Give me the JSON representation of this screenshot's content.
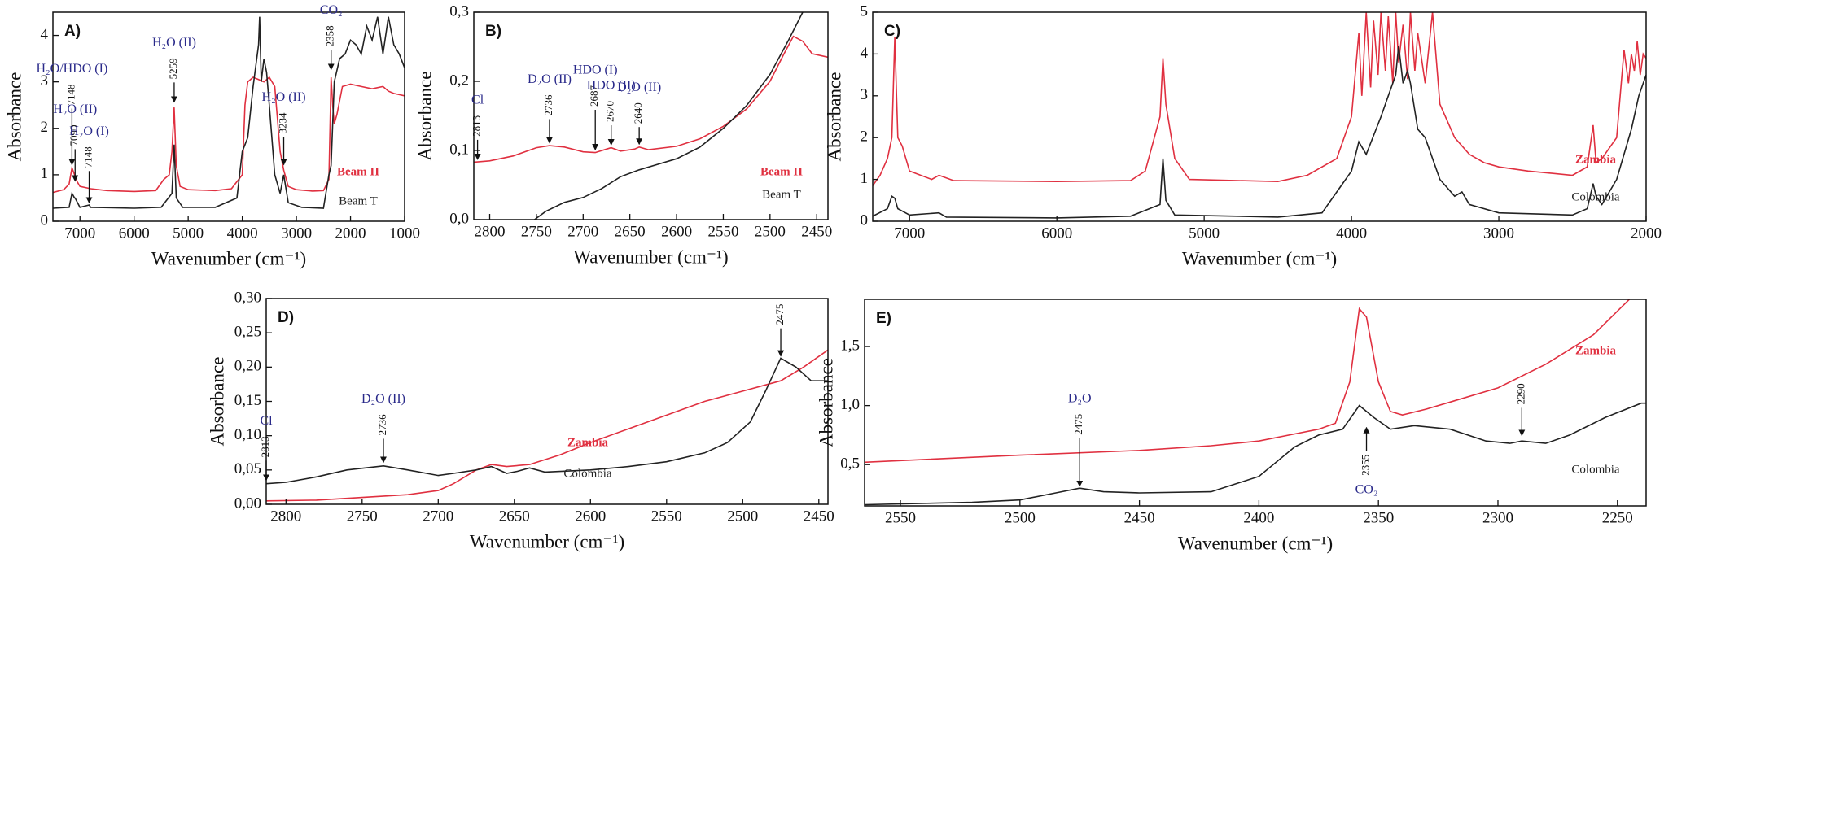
{
  "chart_data": [
    {
      "type": "line",
      "title": "A)",
      "x_label": "Wavenumber (cm⁻¹)",
      "y_label": "Absorbance",
      "xlim": [
        7500,
        1000
      ],
      "xticks": [
        7000,
        6000,
        5000,
        4000,
        3000,
        2000,
        1000
      ],
      "ylim": [
        0,
        4.5
      ],
      "yticks": [
        0,
        1,
        2,
        3,
        4
      ],
      "series": [
        {
          "name": "Beam II",
          "color": "#e03040",
          "x": [
            7500,
            7300,
            7200,
            7148,
            7100,
            7050,
            7000,
            6800,
            6500,
            6000,
            5600,
            5450,
            5350,
            5300,
            5259,
            5220,
            5150,
            5000,
            4500,
            4200,
            4000,
            3950,
            3900,
            3800,
            3700,
            3600,
            3500,
            3400,
            3300,
            3234,
            3150,
            3000,
            2700,
            2500,
            2400,
            2358,
            2330,
            2300,
            2250,
            2150,
            2000,
            1800,
            1600,
            1400,
            1300,
            1200,
            1000
          ],
          "values": [
            0.62,
            0.68,
            0.8,
            1.15,
            1.0,
            0.85,
            0.75,
            0.7,
            0.66,
            0.64,
            0.66,
            0.9,
            1.0,
            1.5,
            2.45,
            1.2,
            0.75,
            0.68,
            0.66,
            0.7,
            1.0,
            2.5,
            3.0,
            3.1,
            3.05,
            3.0,
            3.1,
            2.9,
            1.5,
            1.1,
            0.75,
            0.68,
            0.65,
            0.66,
            0.9,
            3.1,
            2.5,
            2.1,
            2.3,
            2.9,
            2.95,
            2.9,
            2.85,
            2.9,
            2.8,
            2.75,
            2.7
          ]
        },
        {
          "name": "Beam T",
          "color": "#222222",
          "x": [
            7500,
            7200,
            7148,
            7100,
            7090,
            7000,
            6830,
            6800,
            6000,
            5500,
            5300,
            5259,
            5220,
            5100,
            4500,
            4100,
            4000,
            3900,
            3800,
            3700,
            3680,
            3650,
            3600,
            3550,
            3500,
            3400,
            3300,
            3234,
            3150,
            2900,
            2500,
            2400,
            2358,
            2300,
            2200,
            2100,
            2000,
            1900,
            1800,
            1700,
            1600,
            1500,
            1400,
            1300,
            1200,
            1100,
            1000
          ],
          "values": [
            0.28,
            0.3,
            0.6,
            0.5,
            0.5,
            0.3,
            0.35,
            0.3,
            0.28,
            0.3,
            0.6,
            1.65,
            0.5,
            0.3,
            0.3,
            0.5,
            1.5,
            1.8,
            2.9,
            3.8,
            4.4,
            3.0,
            3.5,
            3.2,
            2.5,
            1.0,
            0.6,
            1.0,
            0.4,
            0.3,
            0.28,
            1.0,
            1.2,
            3.0,
            3.5,
            3.6,
            3.9,
            3.8,
            3.6,
            4.2,
            3.9,
            4.4,
            3.6,
            4.4,
            3.8,
            3.6,
            3.3
          ]
        }
      ],
      "annotations": [
        {
          "label": "H₂O/HDO (I)",
          "number": "7148",
          "x": 7148,
          "y": 1.2
        },
        {
          "label": "H₂O (II)",
          "number": "7090",
          "x": 7090,
          "y": 0.85
        },
        {
          "label": "H₂O (I)",
          "number": "7148",
          "x": 6830,
          "y": 0.38
        },
        {
          "label": "H₂O (II)",
          "number": "5259",
          "x": 5259,
          "y": 2.55
        },
        {
          "label": "H₂O (II)",
          "number": "3234",
          "x": 3234,
          "y": 1.2
        },
        {
          "label": "CO₂",
          "number": "2358",
          "x": 2358,
          "y": 3.25
        }
      ]
    },
    {
      "type": "line",
      "title": "B)",
      "x_label": "Wavenumber (cm⁻¹)",
      "y_label": "Absorbance",
      "xlim": [
        2817,
        2438
      ],
      "xticks": [
        2800,
        2750,
        2700,
        2650,
        2600,
        2550,
        2500,
        2450
      ],
      "ylim": [
        0,
        0.3
      ],
      "yticks": [
        {
          "value": 0,
          "label": "0,0"
        },
        {
          "value": 0.1,
          "label": "0,1"
        },
        {
          "value": 0.2,
          "label": "0,2"
        },
        {
          "value": 0.3,
          "label": "0,3"
        }
      ],
      "series": [
        {
          "name": "Beam II",
          "color": "#e03040",
          "x": [
            2817,
            2800,
            2775,
            2750,
            2736,
            2720,
            2700,
            2687,
            2675,
            2670,
            2660,
            2645,
            2640,
            2630,
            2600,
            2575,
            2550,
            2525,
            2500,
            2485,
            2475,
            2465,
            2455,
            2438
          ],
          "values": [
            0.083,
            0.085,
            0.092,
            0.104,
            0.107,
            0.105,
            0.098,
            0.097,
            0.102,
            0.104,
            0.099,
            0.102,
            0.105,
            0.101,
            0.106,
            0.117,
            0.135,
            0.16,
            0.2,
            0.24,
            0.265,
            0.258,
            0.24,
            0.235
          ]
        },
        {
          "name": "Beam T",
          "color": "#222222",
          "x": [
            2752,
            2740,
            2720,
            2700,
            2680,
            2660,
            2640,
            2620,
            2600,
            2575,
            2550,
            2525,
            2500,
            2480,
            2465
          ],
          "values": [
            0.0,
            0.012,
            0.025,
            0.032,
            0.045,
            0.062,
            0.072,
            0.08,
            0.088,
            0.105,
            0.132,
            0.165,
            0.21,
            0.26,
            0.3
          ]
        }
      ],
      "annotations": [
        {
          "label": "Cl",
          "number": "2813",
          "x": 2813,
          "y": 0.086
        },
        {
          "label": "D₂O (II)",
          "number": "2736",
          "x": 2736,
          "y": 0.11
        },
        {
          "label": "HDO (I)",
          "number": "2687",
          "x": 2687,
          "y": 0.1
        },
        {
          "label": "HDO (II)",
          "number": "2670",
          "x": 2670,
          "y": 0.107
        },
        {
          "label": "D₂O (II)",
          "number": "2640",
          "x": 2640,
          "y": 0.108
        }
      ]
    },
    {
      "type": "line",
      "title": "C)",
      "x_label": "Wavenumber (cm⁻¹)",
      "y_label": "Absorbance",
      "xlim": [
        7250,
        2000
      ],
      "xticks": [
        7000,
        6000,
        5000,
        4000,
        3000,
        2000
      ],
      "ylim": [
        0,
        5
      ],
      "yticks": [
        0,
        1,
        2,
        3,
        4,
        5
      ],
      "series": [
        {
          "name": "Zambia",
          "color": "#e03040",
          "x": [
            7250,
            7200,
            7150,
            7120,
            7100,
            7080,
            7050,
            7000,
            6850,
            6800,
            6700,
            6000,
            5500,
            5400,
            5300,
            5280,
            5260,
            5200,
            5100,
            4500,
            4300,
            4100,
            4000,
            3950,
            3930,
            3900,
            3870,
            3850,
            3820,
            3800,
            3770,
            3750,
            3720,
            3700,
            3680,
            3650,
            3620,
            3600,
            3570,
            3550,
            3500,
            3450,
            3400,
            3300,
            3200,
            3100,
            3000,
            2800,
            2500,
            2400,
            2360,
            2340,
            2300,
            2200,
            2150,
            2120,
            2100,
            2080,
            2060,
            2040,
            2020,
            2000
          ],
          "values": [
            0.85,
            1.1,
            1.5,
            2.0,
            4.4,
            2.0,
            1.8,
            1.2,
            1.0,
            1.1,
            0.97,
            0.95,
            0.97,
            1.2,
            2.5,
            3.9,
            2.8,
            1.5,
            1.0,
            0.95,
            1.1,
            1.5,
            2.5,
            4.5,
            3.0,
            5.0,
            3.2,
            4.8,
            3.5,
            5.0,
            3.6,
            4.9,
            3.3,
            5.0,
            3.8,
            4.7,
            3.4,
            5.0,
            3.6,
            4.5,
            3.3,
            5.0,
            2.8,
            2.0,
            1.6,
            1.4,
            1.3,
            1.2,
            1.1,
            1.3,
            2.3,
            1.4,
            1.5,
            2.0,
            4.1,
            3.3,
            4.0,
            3.6,
            4.3,
            3.5,
            4.0,
            3.9
          ]
        },
        {
          "name": "Colombia",
          "color": "#222222",
          "x": [
            7250,
            7150,
            7120,
            7100,
            7080,
            7000,
            6800,
            6750,
            6000,
            5500,
            5300,
            5280,
            5260,
            5200,
            4500,
            4200,
            4000,
            3950,
            3900,
            3800,
            3750,
            3700,
            3680,
            3650,
            3620,
            3600,
            3550,
            3500,
            3400,
            3300,
            3250,
            3200,
            3000,
            2500,
            2400,
            2360,
            2340,
            2300,
            2200,
            2100,
            2050,
            2000
          ],
          "values": [
            0.12,
            0.3,
            0.6,
            0.55,
            0.3,
            0.15,
            0.2,
            0.1,
            0.08,
            0.12,
            0.4,
            1.5,
            0.5,
            0.15,
            0.1,
            0.2,
            1.2,
            1.9,
            1.6,
            2.5,
            3.0,
            3.5,
            4.2,
            3.3,
            3.6,
            3.3,
            2.2,
            2.0,
            1.0,
            0.6,
            0.7,
            0.4,
            0.2,
            0.15,
            0.3,
            0.9,
            0.6,
            0.4,
            1.0,
            2.2,
            3.0,
            3.5
          ]
        }
      ]
    },
    {
      "type": "line",
      "title": "D)",
      "x_label": "Wavenumber (cm⁻¹)",
      "y_label": "Absorbance",
      "xlim": [
        2813,
        2444
      ],
      "xticks": [
        2800,
        2750,
        2700,
        2650,
        2600,
        2550,
        2500,
        2450
      ],
      "ylim": [
        0,
        0.3
      ],
      "yticks": [
        {
          "value": 0,
          "label": "0,00"
        },
        {
          "value": 0.05,
          "label": "0,05"
        },
        {
          "value": 0.1,
          "label": "0,10"
        },
        {
          "value": 0.15,
          "label": "0,15"
        },
        {
          "value": 0.2,
          "label": "0,20"
        },
        {
          "value": 0.25,
          "label": "0,25"
        },
        {
          "value": 0.3,
          "label": "0,30"
        }
      ],
      "series": [
        {
          "name": "Zambia",
          "color": "#e03040",
          "x": [
            2813,
            2780,
            2750,
            2720,
            2700,
            2690,
            2675,
            2665,
            2655,
            2640,
            2620,
            2600,
            2575,
            2550,
            2525,
            2500,
            2475,
            2460,
            2444
          ],
          "values": [
            0.005,
            0.006,
            0.01,
            0.014,
            0.02,
            0.03,
            0.05,
            0.058,
            0.055,
            0.058,
            0.072,
            0.09,
            0.11,
            0.13,
            0.15,
            0.165,
            0.18,
            0.2,
            0.225
          ]
        },
        {
          "name": "Colombia",
          "color": "#222222",
          "x": [
            2813,
            2800,
            2780,
            2760,
            2736,
            2720,
            2700,
            2690,
            2675,
            2665,
            2655,
            2648,
            2640,
            2630,
            2600,
            2575,
            2550,
            2525,
            2510,
            2495,
            2485,
            2475,
            2465,
            2455,
            2444
          ],
          "values": [
            0.03,
            0.032,
            0.04,
            0.05,
            0.056,
            0.05,
            0.042,
            0.045,
            0.05,
            0.055,
            0.045,
            0.048,
            0.053,
            0.047,
            0.05,
            0.055,
            0.062,
            0.075,
            0.09,
            0.12,
            0.165,
            0.213,
            0.2,
            0.18,
            0.18
          ]
        }
      ],
      "annotations": [
        {
          "label": "Cl",
          "number": "2813",
          "x": 2813,
          "y": 0.034
        },
        {
          "label": "D₂O (II)",
          "number": "2736",
          "x": 2736,
          "y": 0.06
        },
        {
          "number": "2475",
          "x": 2475,
          "y": 0.215
        }
      ]
    },
    {
      "type": "line",
      "title": "E)",
      "x_label": "Wavenumber (cm⁻¹)",
      "y_label": "Absorbance",
      "xlim": [
        2565,
        2238
      ],
      "xticks": [
        2550,
        2500,
        2450,
        2400,
        2350,
        2300,
        2250
      ],
      "ylim": [
        0.15,
        1.9
      ],
      "yticks": [
        {
          "value": 0.5,
          "label": "0,5"
        },
        {
          "value": 1,
          "label": "1,0"
        },
        {
          "value": 1.5,
          "label": "1,5"
        }
      ],
      "series": [
        {
          "name": "Zambia",
          "color": "#e03040",
          "x": [
            2565,
            2500,
            2450,
            2420,
            2400,
            2385,
            2375,
            2368,
            2362,
            2358,
            2355,
            2350,
            2345,
            2340,
            2330,
            2320,
            2300,
            2280,
            2260,
            2245
          ],
          "values": [
            0.52,
            0.58,
            0.62,
            0.66,
            0.7,
            0.76,
            0.8,
            0.85,
            1.2,
            1.82,
            1.75,
            1.2,
            0.95,
            0.92,
            0.97,
            1.03,
            1.15,
            1.35,
            1.6,
            1.9
          ]
        },
        {
          "name": "Colombia",
          "color": "#222222",
          "x": [
            2565,
            2520,
            2500,
            2485,
            2475,
            2465,
            2450,
            2420,
            2400,
            2385,
            2375,
            2365,
            2358,
            2352,
            2345,
            2335,
            2320,
            2305,
            2295,
            2290,
            2280,
            2270,
            2255,
            2240,
            2238
          ],
          "values": [
            0.16,
            0.18,
            0.2,
            0.26,
            0.3,
            0.27,
            0.26,
            0.27,
            0.4,
            0.65,
            0.75,
            0.8,
            1.0,
            0.9,
            0.8,
            0.83,
            0.8,
            0.7,
            0.68,
            0.7,
            0.68,
            0.75,
            0.9,
            1.02,
            1.02
          ]
        }
      ],
      "annotations": [
        {
          "label": "D₂O",
          "number": "2475",
          "x": 2475,
          "y": 0.31
        },
        {
          "label": "CO₂",
          "number": "2355",
          "x": 2355,
          "y": 0.82
        },
        {
          "number": "2290",
          "x": 2290,
          "y": 0.74
        }
      ]
    }
  ]
}
